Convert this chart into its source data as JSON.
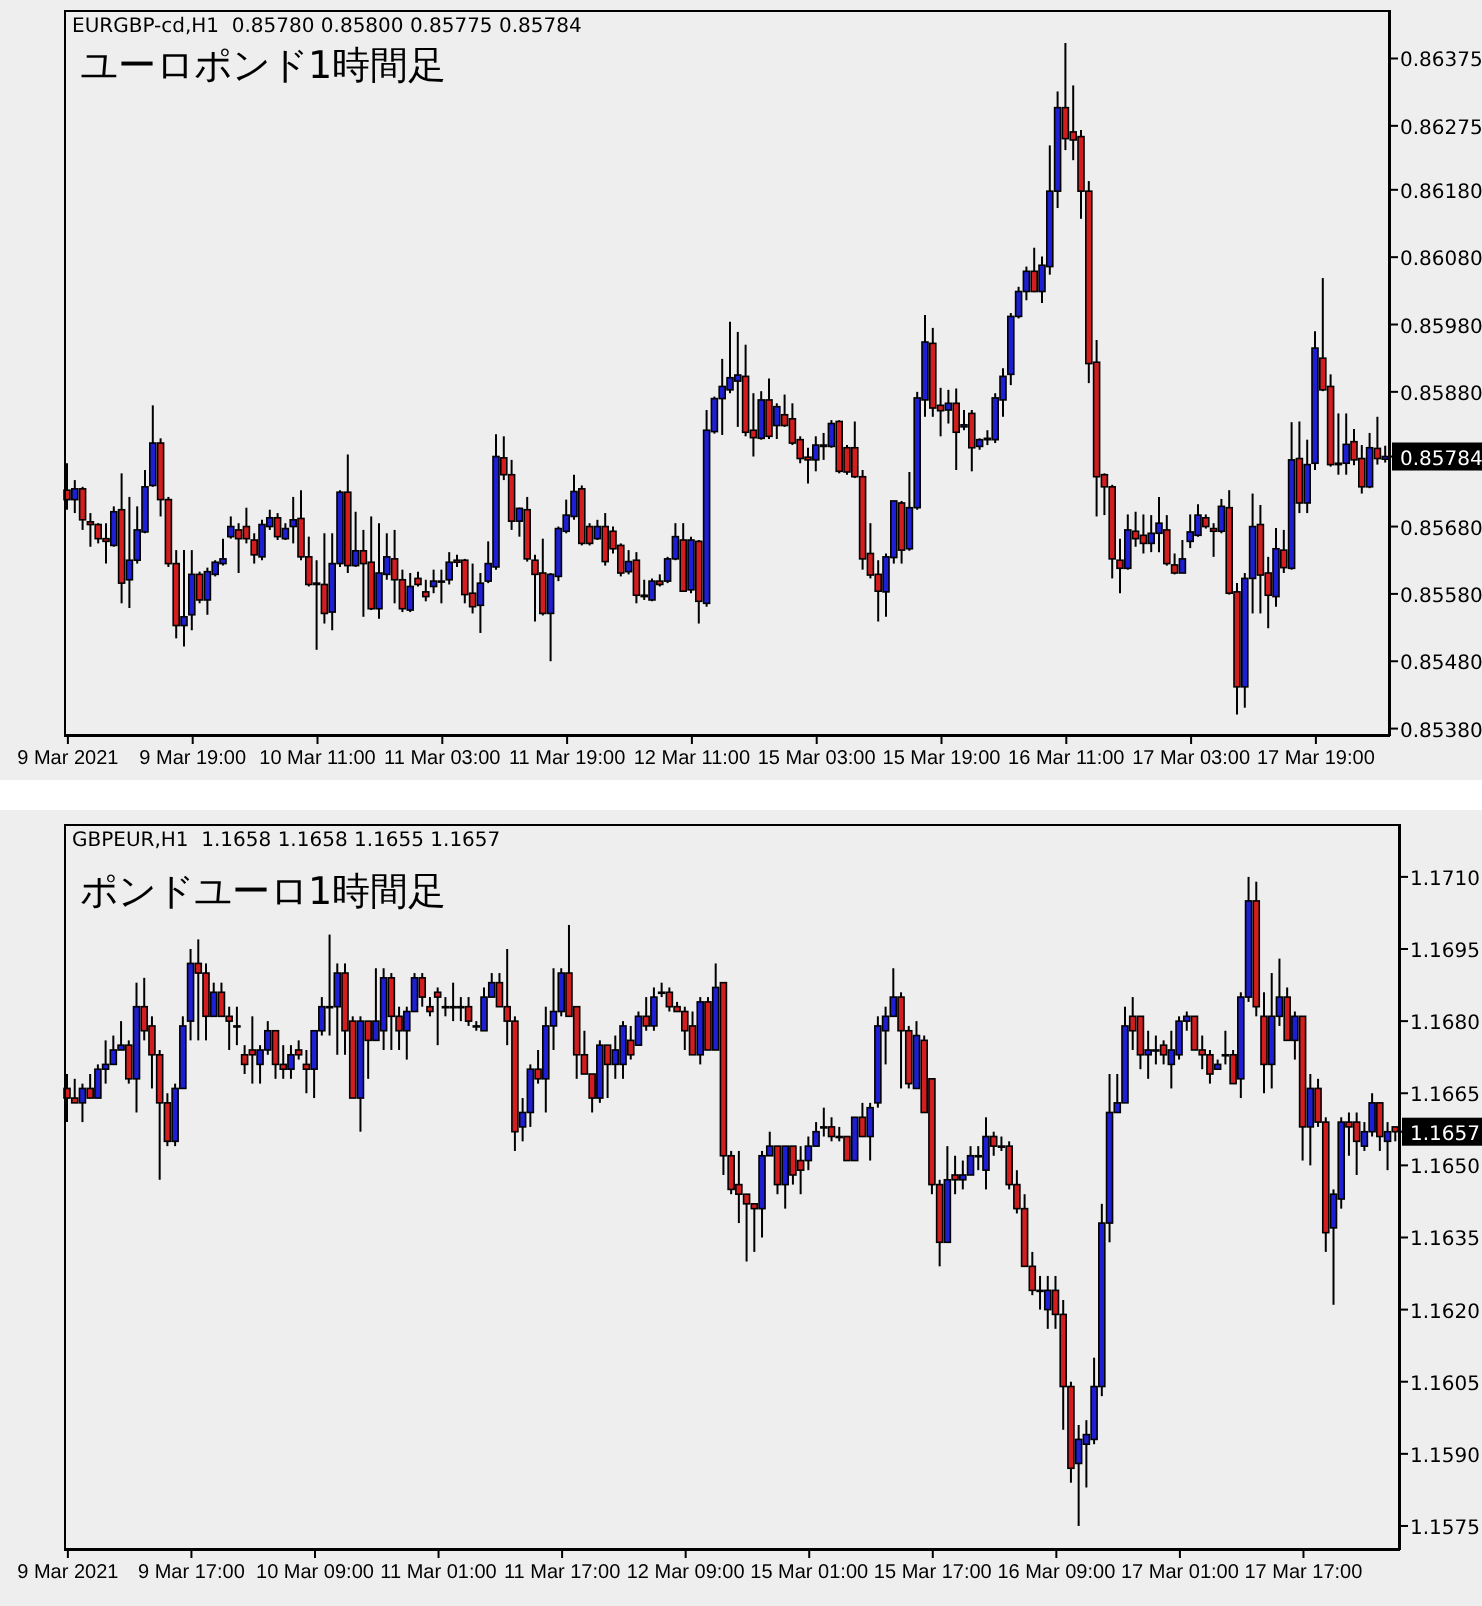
{
  "chart_data": [
    {
      "type": "candlestick",
      "title": "ユーロポンド1時間足",
      "annotations": [
        "EURGBP-cd,H1  0.85780 0.85800 0.85775 0.85784"
      ],
      "categories": [
        "9 Mar 2021",
        null,
        null,
        null,
        null,
        null,
        null,
        null,
        null,
        null,
        null,
        null,
        null,
        null,
        null,
        null,
        "9 Mar 19:00",
        null,
        null,
        null,
        null,
        null,
        null,
        null,
        null,
        null,
        null,
        null,
        null,
        null,
        null,
        null,
        "10 Mar 11:00",
        null,
        null,
        null,
        null,
        null,
        null,
        null,
        null,
        null,
        null,
        null,
        null,
        null,
        null,
        null,
        "11 Mar 03:00",
        null,
        null,
        null,
        null,
        null,
        null,
        null,
        null,
        null,
        null,
        null,
        null,
        null,
        null,
        null,
        "11 Mar 19:00",
        null,
        null,
        null,
        null,
        null,
        null,
        null,
        null,
        null,
        null,
        null,
        null,
        null,
        null,
        null,
        "12 Mar 11:00",
        null,
        null,
        null,
        null,
        null,
        null,
        null,
        null,
        null,
        null,
        null,
        null,
        null,
        null,
        null,
        "15 Mar 03:00",
        null,
        null,
        null,
        null,
        null,
        null,
        null,
        null,
        null,
        null,
        null,
        null,
        null,
        null,
        null,
        "15 Mar 19:00",
        null,
        null,
        null,
        null,
        null,
        null,
        null,
        null,
        null,
        null,
        null,
        null,
        null,
        null,
        null,
        "16 Mar 11:00",
        null,
        null,
        null,
        null,
        null,
        null,
        null,
        null,
        null,
        null,
        null,
        null,
        null,
        null,
        null,
        "17 Mar 03:00",
        null,
        null,
        null,
        null,
        null,
        null,
        null,
        null,
        null,
        null,
        null,
        null,
        null,
        null,
        null,
        "17 Mar 19:00",
        null,
        null,
        null,
        null,
        null,
        null,
        null,
        null,
        null
      ],
      "ohlc": [
        [
          0.85734,
          0.85774,
          0.85705,
          0.8572
        ],
        [
          0.8572,
          0.85749,
          0.857,
          0.85736
        ],
        [
          0.85736,
          0.85739,
          0.85675,
          0.8569
        ],
        [
          0.85687,
          0.857,
          0.8565,
          0.85683
        ],
        [
          0.85683,
          0.85685,
          0.85655,
          0.85662
        ],
        [
          0.85662,
          0.85685,
          0.85625,
          0.85658
        ],
        [
          0.85652,
          0.8571,
          0.8565,
          0.85702
        ],
        [
          0.85705,
          0.85759,
          0.85566,
          0.85596
        ],
        [
          0.85601,
          0.85724,
          0.85559,
          0.8563
        ],
        [
          0.8563,
          0.8571,
          0.85625,
          0.85675
        ],
        [
          0.85672,
          0.85764,
          0.8567,
          0.85739
        ],
        [
          0.85741,
          0.8586,
          0.85739,
          0.85804
        ],
        [
          0.85804,
          0.85811,
          0.85695,
          0.8572
        ],
        [
          0.8572,
          0.85724,
          0.8562,
          0.85625
        ],
        [
          0.85625,
          0.85645,
          0.85514,
          0.85533
        ],
        [
          0.85533,
          0.85645,
          0.85502,
          0.85546
        ],
        [
          0.85549,
          0.85645,
          0.85526,
          0.85609
        ],
        [
          0.85609,
          0.85613,
          0.85566,
          0.85571
        ],
        [
          0.85571,
          0.85619,
          0.85549,
          0.85613
        ],
        [
          0.85609,
          0.8563,
          0.85606,
          0.85627
        ],
        [
          0.85625,
          0.85662,
          0.85622,
          0.85632
        ],
        [
          0.85665,
          0.85695,
          0.85662,
          0.8568
        ],
        [
          0.85675,
          0.85685,
          0.85611,
          0.85662
        ],
        [
          0.8568,
          0.85708,
          0.85655,
          0.85662
        ],
        [
          0.8566,
          0.8567,
          0.85625,
          0.85638
        ],
        [
          0.85635,
          0.8569,
          0.8563,
          0.85683
        ],
        [
          0.8568,
          0.85705,
          0.85675,
          0.85693
        ],
        [
          0.85693,
          0.857,
          0.8566,
          0.85665
        ],
        [
          0.85662,
          0.85685,
          0.8566,
          0.85677
        ],
        [
          0.8568,
          0.85724,
          0.85655,
          0.8569
        ],
        [
          0.85692,
          0.85734,
          0.8563,
          0.85635
        ],
        [
          0.85635,
          0.85665,
          0.85591,
          0.85594
        ],
        [
          0.85596,
          0.8563,
          0.85497,
          0.85594
        ],
        [
          0.85594,
          0.8567,
          0.85536,
          0.85551
        ],
        [
          0.85553,
          0.8567,
          0.85526,
          0.85625
        ],
        [
          0.85625,
          0.85734,
          0.8562,
          0.85731
        ],
        [
          0.85731,
          0.85787,
          0.85611,
          0.85622
        ],
        [
          0.85622,
          0.85702,
          0.8562,
          0.85644
        ],
        [
          0.85644,
          0.85675,
          0.85546,
          0.85625
        ],
        [
          0.85627,
          0.85695,
          0.85556,
          0.85558
        ],
        [
          0.85558,
          0.85685,
          0.85543,
          0.85611
        ],
        [
          0.85609,
          0.8567,
          0.85601,
          0.85635
        ],
        [
          0.85632,
          0.85675,
          0.85566,
          0.85601
        ],
        [
          0.85601,
          0.85616,
          0.85553,
          0.85558
        ],
        [
          0.85556,
          0.85611,
          0.85553,
          0.85591
        ],
        [
          0.85603,
          0.85613,
          0.85591,
          0.85594
        ],
        [
          0.85583,
          0.85601,
          0.85569,
          0.85576
        ],
        [
          0.85591,
          0.85616,
          0.85581,
          0.85599
        ],
        [
          0.85599,
          0.85616,
          0.85566,
          0.85599
        ],
        [
          0.85601,
          0.85642,
          0.85594,
          0.85627
        ],
        [
          0.8563,
          0.85638,
          0.8562,
          0.85627
        ],
        [
          0.8563,
          0.85632,
          0.85566,
          0.85579
        ],
        [
          0.85581,
          0.85625,
          0.85551,
          0.85561
        ],
        [
          0.85563,
          0.85611,
          0.85522,
          0.85596
        ],
        [
          0.85599,
          0.85658,
          0.85596,
          0.85625
        ],
        [
          0.8562,
          0.85817,
          0.85616,
          0.85784
        ],
        [
          0.85782,
          0.85814,
          0.85749,
          0.85757
        ],
        [
          0.85757,
          0.85779,
          0.85675,
          0.85688
        ],
        [
          0.85688,
          0.85708,
          0.85665,
          0.85707
        ],
        [
          0.85705,
          0.85724,
          0.85628,
          0.85632
        ],
        [
          0.8563,
          0.85638,
          0.85539,
          0.85609
        ],
        [
          0.85611,
          0.85662,
          0.85548,
          0.85551
        ],
        [
          0.85551,
          0.85611,
          0.8548,
          0.85609
        ],
        [
          0.85606,
          0.8568,
          0.85599,
          0.85677
        ],
        [
          0.85673,
          0.8572,
          0.8567,
          0.85697
        ],
        [
          0.85695,
          0.85757,
          0.8569,
          0.85732
        ],
        [
          0.85736,
          0.85741,
          0.85652,
          0.85655
        ],
        [
          0.8568,
          0.85685,
          0.85652,
          0.85655
        ],
        [
          0.85662,
          0.8569,
          0.8566,
          0.8568
        ],
        [
          0.8568,
          0.857,
          0.85622,
          0.85628
        ],
        [
          0.85673,
          0.8568,
          0.8564,
          0.85647
        ],
        [
          0.85652,
          0.85655,
          0.85606,
          0.85611
        ],
        [
          0.85613,
          0.85645,
          0.85609,
          0.85628
        ],
        [
          0.8563,
          0.85642,
          0.85566,
          0.85578
        ],
        [
          0.85576,
          0.85601,
          0.85571,
          0.85578
        ],
        [
          0.85571,
          0.85603,
          0.85569,
          0.85599
        ],
        [
          0.85599,
          0.85609,
          0.85591,
          0.85594
        ],
        [
          0.85599,
          0.85635,
          0.85596,
          0.85632
        ],
        [
          0.85632,
          0.85685,
          0.8563,
          0.85665
        ],
        [
          0.8566,
          0.85685,
          0.85583,
          0.85584
        ],
        [
          0.85586,
          0.85665,
          0.85581,
          0.8566
        ],
        [
          0.85658,
          0.8566,
          0.85536,
          0.85569
        ],
        [
          0.85566,
          0.85853,
          0.85561,
          0.85823
        ],
        [
          0.85821,
          0.85873,
          0.85818,
          0.8587
        ],
        [
          0.8587,
          0.85929,
          0.85816,
          0.85888
        ],
        [
          0.85883,
          0.85984,
          0.85878,
          0.85901
        ],
        [
          0.85896,
          0.85969,
          0.85828,
          0.85905
        ],
        [
          0.85903,
          0.8595,
          0.85814,
          0.8582
        ],
        [
          0.85823,
          0.85878,
          0.85784,
          0.85812
        ],
        [
          0.85811,
          0.85881,
          0.85809,
          0.85868
        ],
        [
          0.85868,
          0.859,
          0.8581,
          0.85814
        ],
        [
          0.8583,
          0.85863,
          0.8581,
          0.85858
        ],
        [
          0.85846,
          0.85876,
          0.85828,
          0.8583
        ],
        [
          0.8584,
          0.85863,
          0.85801,
          0.85804
        ],
        [
          0.85809,
          0.85814,
          0.85774,
          0.85781
        ],
        [
          0.85783,
          0.85797,
          0.85744,
          0.85779
        ],
        [
          0.85779,
          0.85814,
          0.85762,
          0.85801
        ],
        [
          0.85799,
          0.85819,
          0.85779,
          0.85801
        ],
        [
          0.85799,
          0.85838,
          0.85797,
          0.85833
        ],
        [
          0.85836,
          0.85838,
          0.85759,
          0.85762
        ],
        [
          0.85797,
          0.85801,
          0.85757,
          0.85761
        ],
        [
          0.85797,
          0.85836,
          0.85752,
          0.85754
        ],
        [
          0.85754,
          0.85764,
          0.85616,
          0.85632
        ],
        [
          0.8564,
          0.85685,
          0.85603,
          0.85608
        ],
        [
          0.85609,
          0.8563,
          0.85539,
          0.85584
        ],
        [
          0.85583,
          0.8564,
          0.85546,
          0.85635
        ],
        [
          0.85634,
          0.85718,
          0.85625,
          0.85718
        ],
        [
          0.85715,
          0.85718,
          0.85625,
          0.85645
        ],
        [
          0.85647,
          0.85761,
          0.85644,
          0.85708
        ],
        [
          0.85708,
          0.8588,
          0.85705,
          0.85871
        ],
        [
          0.85868,
          0.85994,
          0.85843,
          0.85954
        ],
        [
          0.85952,
          0.85975,
          0.85843,
          0.85856
        ],
        [
          0.8586,
          0.85886,
          0.85814,
          0.85852
        ],
        [
          0.85853,
          0.85883,
          0.85833,
          0.85863
        ],
        [
          0.85863,
          0.85885,
          0.85764,
          0.8582
        ],
        [
          0.85828,
          0.85853,
          0.85823,
          0.85831
        ],
        [
          0.85848,
          0.85853,
          0.85762,
          0.85797
        ],
        [
          0.85799,
          0.85811,
          0.85794,
          0.85809
        ],
        [
          0.85809,
          0.85823,
          0.85801,
          0.85811
        ],
        [
          0.85809,
          0.85878,
          0.85804,
          0.85871
        ],
        [
          0.85868,
          0.85915,
          0.85843,
          0.85903
        ],
        [
          0.85906,
          0.85997,
          0.8589,
          0.85992
        ],
        [
          0.85992,
          0.86036,
          0.85989,
          0.86029
        ],
        [
          0.86029,
          0.86066,
          0.86016,
          0.86059
        ],
        [
          0.86059,
          0.86094,
          0.86028,
          0.86029
        ],
        [
          0.86029,
          0.86081,
          0.86012,
          0.86068
        ],
        [
          0.86066,
          0.86246,
          0.86054,
          0.86178
        ],
        [
          0.86178,
          0.86326,
          0.86153,
          0.86302
        ],
        [
          0.86302,
          0.86398,
          0.86239,
          0.86256
        ],
        [
          0.86266,
          0.86335,
          0.86224,
          0.86254
        ],
        [
          0.86259,
          0.86269,
          0.86137,
          0.86178
        ],
        [
          0.86178,
          0.86193,
          0.85893,
          0.85922
        ],
        [
          0.85924,
          0.85957,
          0.85695,
          0.85754
        ],
        [
          0.85757,
          0.85759,
          0.85697,
          0.85739
        ],
        [
          0.85739,
          0.85742,
          0.85603,
          0.85632
        ],
        [
          0.8563,
          0.85662,
          0.85581,
          0.85618
        ],
        [
          0.85618,
          0.85698,
          0.85616,
          0.85675
        ],
        [
          0.85673,
          0.85702,
          0.8565,
          0.85662
        ],
        [
          0.85667,
          0.85698,
          0.8564,
          0.85655
        ],
        [
          0.85655,
          0.85697,
          0.85642,
          0.8567
        ],
        [
          0.8567,
          0.85724,
          0.85642,
          0.85685
        ],
        [
          0.85675,
          0.85697,
          0.85622,
          0.85625
        ],
        [
          0.85623,
          0.8564,
          0.85609,
          0.85611
        ],
        [
          0.85611,
          0.8566,
          0.85611,
          0.85632
        ],
        [
          0.85658,
          0.85698,
          0.85648,
          0.85672
        ],
        [
          0.85667,
          0.85713,
          0.85665,
          0.85697
        ],
        [
          0.85693,
          0.85698,
          0.85677,
          0.8568
        ],
        [
          0.85677,
          0.85685,
          0.85635,
          0.85673
        ],
        [
          0.85673,
          0.85721,
          0.8567,
          0.8571
        ],
        [
          0.85708,
          0.85734,
          0.85579,
          0.85581
        ],
        [
          0.85583,
          0.85596,
          0.85401,
          0.85442
        ],
        [
          0.85442,
          0.85611,
          0.85411,
          0.85603
        ],
        [
          0.85603,
          0.85729,
          0.85551,
          0.8568
        ],
        [
          0.85683,
          0.85712,
          0.85551,
          0.85608
        ],
        [
          0.85611,
          0.85635,
          0.85529,
          0.85578
        ],
        [
          0.85576,
          0.85678,
          0.85561,
          0.85647
        ],
        [
          0.85645,
          0.85675,
          0.85611,
          0.85619
        ],
        [
          0.85618,
          0.85835,
          0.85616,
          0.85779
        ],
        [
          0.85781,
          0.85836,
          0.857,
          0.85715
        ],
        [
          0.85715,
          0.85809,
          0.857,
          0.85772
        ],
        [
          0.85774,
          0.8597,
          0.85764,
          0.85945
        ],
        [
          0.8593,
          0.86049,
          0.85881,
          0.85883
        ],
        [
          0.85888,
          0.85906,
          0.85769,
          0.85772
        ],
        [
          0.85774,
          0.85848,
          0.85757,
          0.85772
        ],
        [
          0.85774,
          0.85848,
          0.85757,
          0.85802
        ],
        [
          0.85806,
          0.85825,
          0.85771,
          0.85779
        ],
        [
          0.85781,
          0.85801,
          0.85729,
          0.85739
        ],
        [
          0.85739,
          0.85819,
          0.85737,
          0.85797
        ],
        [
          0.85796,
          0.85843,
          0.85772,
          0.85781
        ],
        [
          0.8578,
          0.858,
          0.85775,
          0.85784
        ]
      ],
      "ylim": [
        0.85369,
        0.86447
      ],
      "yticks": [
        {
          "value": 0.8538,
          "label": "0.85380"
        },
        {
          "value": 0.8548,
          "label": "0.85480"
        },
        {
          "value": 0.8558,
          "label": "0.85580"
        },
        {
          "value": 0.8568,
          "label": "0.85680"
        },
        {
          "value": 0.85784,
          "label": "0.85784"
        },
        {
          "value": 0.8588,
          "label": "0.85880"
        },
        {
          "value": 0.8598,
          "label": "0.85980"
        },
        {
          "value": 0.8608,
          "label": "0.86080"
        },
        {
          "value": 0.8618,
          "label": "0.86180"
        },
        {
          "value": 0.86275,
          "label": "0.86275"
        },
        {
          "value": 0.86375,
          "label": "0.86375"
        }
      ]
    },
    {
      "type": "candlestick",
      "title": "ポンドユーロ1時間足",
      "annotations": [
        "GBPEUR,H1  1.1658 1.1658 1.1655 1.1657"
      ],
      "categories": [
        "9 Mar 2021",
        null,
        null,
        null,
        null,
        null,
        null,
        null,
        null,
        null,
        null,
        null,
        null,
        null,
        null,
        null,
        "9 Mar 17:00",
        null,
        null,
        null,
        null,
        null,
        null,
        null,
        null,
        null,
        null,
        null,
        null,
        null,
        null,
        null,
        "10 Mar 09:00",
        null,
        null,
        null,
        null,
        null,
        null,
        null,
        null,
        null,
        null,
        null,
        null,
        null,
        null,
        null,
        "11 Mar 01:00",
        null,
        null,
        null,
        null,
        null,
        null,
        null,
        null,
        null,
        null,
        null,
        null,
        null,
        null,
        null,
        "11 Mar 17:00",
        null,
        null,
        null,
        null,
        null,
        null,
        null,
        null,
        null,
        null,
        null,
        null,
        null,
        null,
        null,
        "12 Mar 09:00",
        null,
        null,
        null,
        null,
        null,
        null,
        null,
        null,
        null,
        null,
        null,
        null,
        null,
        null,
        null,
        "15 Mar 01:00",
        null,
        null,
        null,
        null,
        null,
        null,
        null,
        null,
        null,
        null,
        null,
        null,
        null,
        null,
        null,
        "15 Mar 17:00",
        null,
        null,
        null,
        null,
        null,
        null,
        null,
        null,
        null,
        null,
        null,
        null,
        null,
        null,
        null,
        "16 Mar 09:00",
        null,
        null,
        null,
        null,
        null,
        null,
        null,
        null,
        null,
        null,
        null,
        null,
        null,
        null,
        null,
        "17 Mar 01:00",
        null,
        null,
        null,
        null,
        null,
        null,
        null,
        null,
        null,
        null,
        null,
        null,
        null,
        null,
        null,
        "17 Mar 17:00",
        null,
        null,
        null,
        null,
        null,
        null,
        null,
        null,
        null,
        null,
        null,
        null
      ],
      "ohlc": [
        [
          1.1666,
          1.1669,
          1.1659,
          1.1664
        ],
        [
          1.1664,
          1.1668,
          1.1663,
          1.1663
        ],
        [
          1.1663,
          1.1667,
          1.1659,
          1.1666
        ],
        [
          1.1666,
          1.1669,
          1.1664,
          1.1664
        ],
        [
          1.1664,
          1.1671,
          1.1664,
          1.167
        ],
        [
          1.167,
          1.1676,
          1.1667,
          1.1671
        ],
        [
          1.1671,
          1.1677,
          1.1671,
          1.1674
        ],
        [
          1.1674,
          1.168,
          1.1674,
          1.1675
        ],
        [
          1.1675,
          1.1676,
          1.1667,
          1.1668
        ],
        [
          1.1668,
          1.1688,
          1.1661,
          1.1683
        ],
        [
          1.1683,
          1.1689,
          1.1676,
          1.1678
        ],
        [
          1.1679,
          1.1681,
          1.1666,
          1.1673
        ],
        [
          1.1673,
          1.1674,
          1.1647,
          1.1663
        ],
        [
          1.1663,
          1.1665,
          1.1654,
          1.1655
        ],
        [
          1.1655,
          1.1667,
          1.1654,
          1.1666
        ],
        [
          1.1666,
          1.1681,
          1.1666,
          1.1679
        ],
        [
          1.168,
          1.1695,
          1.1676,
          1.1692
        ],
        [
          1.1692,
          1.1697,
          1.1676,
          1.169
        ],
        [
          1.169,
          1.1692,
          1.1676,
          1.1681
        ],
        [
          1.1681,
          1.1688,
          1.1681,
          1.1686
        ],
        [
          1.1686,
          1.1688,
          1.1681,
          1.1681
        ],
        [
          1.1681,
          1.1683,
          1.1674,
          1.168
        ],
        [
          1.1679,
          1.1683,
          1.1675,
          1.1679
        ],
        [
          1.1673,
          1.1675,
          1.1669,
          1.1671
        ],
        [
          1.1674,
          1.1681,
          1.1667,
          1.1673
        ],
        [
          1.1671,
          1.1675,
          1.1667,
          1.1674
        ],
        [
          1.1674,
          1.168,
          1.1673,
          1.1678
        ],
        [
          1.1678,
          1.1678,
          1.1668,
          1.1671
        ],
        [
          1.1671,
          1.1675,
          1.1668,
          1.167
        ],
        [
          1.167,
          1.1675,
          1.1668,
          1.1673
        ],
        [
          1.1674,
          1.1676,
          1.1672,
          1.1673
        ],
        [
          1.1671,
          1.1674,
          1.1665,
          1.167
        ],
        [
          1.167,
          1.1678,
          1.1664,
          1.1678
        ],
        [
          1.1678,
          1.1685,
          1.1677,
          1.1683
        ],
        [
          1.1683,
          1.1698,
          1.1677,
          1.1683
        ],
        [
          1.1683,
          1.1692,
          1.1673,
          1.169
        ],
        [
          1.169,
          1.1692,
          1.1673,
          1.1678
        ],
        [
          1.168,
          1.1681,
          1.1664,
          1.1664
        ],
        [
          1.1664,
          1.1681,
          1.1657,
          1.168
        ],
        [
          1.168,
          1.168,
          1.1668,
          1.1676
        ],
        [
          1.1676,
          1.1691,
          1.1676,
          1.168
        ],
        [
          1.1678,
          1.1691,
          1.1674,
          1.1689
        ],
        [
          1.1689,
          1.169,
          1.1674,
          1.1681
        ],
        [
          1.1681,
          1.1683,
          1.1674,
          1.1678
        ],
        [
          1.1678,
          1.1683,
          1.1672,
          1.1682
        ],
        [
          1.1682,
          1.169,
          1.1682,
          1.1689
        ],
        [
          1.1689,
          1.169,
          1.1683,
          1.1685
        ],
        [
          1.1683,
          1.1685,
          1.1681,
          1.1682
        ],
        [
          1.1686,
          1.1687,
          1.1675,
          1.1685
        ],
        [
          1.1683,
          1.1685,
          1.1681,
          1.1683
        ],
        [
          1.1683,
          1.1688,
          1.168,
          1.1683
        ],
        [
          1.1683,
          1.1685,
          1.168,
          1.1683
        ],
        [
          1.1683,
          1.1685,
          1.1679,
          1.168
        ],
        [
          1.1679,
          1.168,
          1.1678,
          1.1679
        ],
        [
          1.1678,
          1.1687,
          1.1678,
          1.1685
        ],
        [
          1.1685,
          1.169,
          1.1685,
          1.1688
        ],
        [
          1.1688,
          1.169,
          1.1683,
          1.1683
        ],
        [
          1.1683,
          1.1695,
          1.1675,
          1.168
        ],
        [
          1.168,
          1.1681,
          1.1653,
          1.1657
        ],
        [
          1.1658,
          1.1664,
          1.1655,
          1.1661
        ],
        [
          1.1661,
          1.1671,
          1.1658,
          1.167
        ],
        [
          1.167,
          1.1674,
          1.1667,
          1.1668
        ],
        [
          1.1668,
          1.1683,
          1.1661,
          1.1679
        ],
        [
          1.1679,
          1.1691,
          1.1674,
          1.1682
        ],
        [
          1.1682,
          1.1691,
          1.1681,
          1.169
        ],
        [
          1.169,
          1.17,
          1.1681,
          1.1681
        ],
        [
          1.1683,
          1.1683,
          1.1668,
          1.1673
        ],
        [
          1.1673,
          1.1678,
          1.1669,
          1.1669
        ],
        [
          1.1669,
          1.1669,
          1.1661,
          1.1664
        ],
        [
          1.1664,
          1.1676,
          1.1663,
          1.1675
        ],
        [
          1.1675,
          1.1675,
          1.1664,
          1.1671
        ],
        [
          1.1671,
          1.1677,
          1.1668,
          1.1674
        ],
        [
          1.1671,
          1.168,
          1.1668,
          1.1679
        ],
        [
          1.1676,
          1.1679,
          1.1672,
          1.1673
        ],
        [
          1.1675,
          1.1682,
          1.1675,
          1.1681
        ],
        [
          1.1681,
          1.1685,
          1.1678,
          1.1679
        ],
        [
          1.1679,
          1.1687,
          1.1678,
          1.1685
        ],
        [
          1.1686,
          1.1688,
          1.1685,
          1.1686
        ],
        [
          1.1686,
          1.1687,
          1.1682,
          1.1683
        ],
        [
          1.1683,
          1.1684,
          1.1682,
          1.1682
        ],
        [
          1.1682,
          1.1683,
          1.1674,
          1.1678
        ],
        [
          1.1679,
          1.1682,
          1.1673,
          1.1673
        ],
        [
          1.1673,
          1.1685,
          1.1671,
          1.1684
        ],
        [
          1.1684,
          1.1685,
          1.1674,
          1.1674
        ],
        [
          1.1674,
          1.1692,
          1.1674,
          1.1687
        ],
        [
          1.1688,
          1.1688,
          1.1648,
          1.1652
        ],
        [
          1.1652,
          1.1653,
          1.1644,
          1.1645
        ],
        [
          1.1646,
          1.1653,
          1.1638,
          1.1644
        ],
        [
          1.1644,
          1.1644,
          1.163,
          1.1642
        ],
        [
          1.1642,
          1.1642,
          1.1632,
          1.1641
        ],
        [
          1.1641,
          1.1653,
          1.1635,
          1.1652
        ],
        [
          1.1652,
          1.1657,
          1.1652,
          1.1654
        ],
        [
          1.1654,
          1.1654,
          1.1644,
          1.1646
        ],
        [
          1.1646,
          1.1654,
          1.1641,
          1.1654
        ],
        [
          1.1654,
          1.1654,
          1.1646,
          1.1648
        ],
        [
          1.1651,
          1.1654,
          1.1644,
          1.1649
        ],
        [
          1.1651,
          1.1656,
          1.1649,
          1.1654
        ],
        [
          1.1654,
          1.1659,
          1.1654,
          1.1657
        ],
        [
          1.1658,
          1.1662,
          1.1656,
          1.1658
        ],
        [
          1.1658,
          1.166,
          1.1655,
          1.1656
        ],
        [
          1.1656,
          1.1658,
          1.1655,
          1.1656
        ],
        [
          1.1656,
          1.1656,
          1.1651,
          1.1651
        ],
        [
          1.1651,
          1.166,
          1.1651,
          1.166
        ],
        [
          1.166,
          1.1663,
          1.1656,
          1.1656
        ],
        [
          1.1656,
          1.1663,
          1.1651,
          1.1662
        ],
        [
          1.1663,
          1.1681,
          1.1662,
          1.1679
        ],
        [
          1.1678,
          1.1683,
          1.1671,
          1.1681
        ],
        [
          1.1681,
          1.1691,
          1.1681,
          1.1685
        ],
        [
          1.1685,
          1.1686,
          1.1666,
          1.1678
        ],
        [
          1.1678,
          1.1679,
          1.1666,
          1.1667
        ],
        [
          1.1666,
          1.168,
          1.1666,
          1.1677
        ],
        [
          1.1676,
          1.1677,
          1.1661,
          1.1661
        ],
        [
          1.1668,
          1.1668,
          1.1644,
          1.1646
        ],
        [
          1.1646,
          1.1647,
          1.1629,
          1.1634
        ],
        [
          1.1634,
          1.1654,
          1.1634,
          1.1647
        ],
        [
          1.1648,
          1.1652,
          1.1644,
          1.1647
        ],
        [
          1.1647,
          1.1651,
          1.1645,
          1.1648
        ],
        [
          1.1648,
          1.1654,
          1.1648,
          1.1652
        ],
        [
          1.1652,
          1.1654,
          1.1649,
          1.1652
        ],
        [
          1.1649,
          1.166,
          1.1645,
          1.1656
        ],
        [
          1.1656,
          1.1657,
          1.1652,
          1.1654
        ],
        [
          1.1654,
          1.1656,
          1.1653,
          1.1654
        ],
        [
          1.1654,
          1.1655,
          1.1645,
          1.1646
        ],
        [
          1.1646,
          1.1649,
          1.164,
          1.1641
        ],
        [
          1.1641,
          1.1644,
          1.1629,
          1.1629
        ],
        [
          1.1629,
          1.1632,
          1.1623,
          1.1624
        ],
        [
          1.1624,
          1.1627,
          1.162,
          1.1624
        ],
        [
          1.162,
          1.1627,
          1.1616,
          1.1624
        ],
        [
          1.1624,
          1.1627,
          1.1616,
          1.1619
        ],
        [
          1.1619,
          1.1622,
          1.1595,
          1.1604
        ],
        [
          1.1604,
          1.1605,
          1.1584,
          1.1587
        ],
        [
          1.1588,
          1.1596,
          1.1575,
          1.1593
        ],
        [
          1.1592,
          1.1597,
          1.1583,
          1.1594
        ],
        [
          1.1593,
          1.161,
          1.1592,
          1.1604
        ],
        [
          1.1604,
          1.1642,
          1.1602,
          1.1638
        ],
        [
          1.1638,
          1.1669,
          1.1634,
          1.1661
        ],
        [
          1.1661,
          1.1669,
          1.1661,
          1.1663
        ],
        [
          1.1663,
          1.1683,
          1.1663,
          1.1679
        ],
        [
          1.1681,
          1.1685,
          1.1674,
          1.1678
        ],
        [
          1.1681,
          1.1681,
          1.167,
          1.1673
        ],
        [
          1.1673,
          1.1678,
          1.1668,
          1.1674
        ],
        [
          1.1674,
          1.1677,
          1.1671,
          1.1674
        ],
        [
          1.1675,
          1.1676,
          1.1671,
          1.1673
        ],
        [
          1.1671,
          1.1678,
          1.1666,
          1.1674
        ],
        [
          1.1673,
          1.1681,
          1.1672,
          1.168
        ],
        [
          1.168,
          1.1682,
          1.1678,
          1.1681
        ],
        [
          1.1681,
          1.1681,
          1.1674,
          1.1674
        ],
        [
          1.1674,
          1.1677,
          1.167,
          1.1673
        ],
        [
          1.1673,
          1.1674,
          1.1667,
          1.1669
        ],
        [
          1.167,
          1.1672,
          1.167,
          1.1671
        ],
        [
          1.1673,
          1.1678,
          1.1671,
          1.1673
        ],
        [
          1.1673,
          1.1674,
          1.1667,
          1.1667
        ],
        [
          1.1668,
          1.1686,
          1.1664,
          1.1685
        ],
        [
          1.1685,
          1.171,
          1.1684,
          1.1705
        ],
        [
          1.1705,
          1.1709,
          1.1681,
          1.1683
        ],
        [
          1.1681,
          1.1686,
          1.1665,
          1.1671
        ],
        [
          1.1671,
          1.169,
          1.1666,
          1.1681
        ],
        [
          1.1681,
          1.1693,
          1.1679,
          1.1685
        ],
        [
          1.1685,
          1.1687,
          1.1676,
          1.1676
        ],
        [
          1.1676,
          1.1682,
          1.1672,
          1.1681
        ],
        [
          1.1681,
          1.1681,
          1.1651,
          1.1658
        ],
        [
          1.1658,
          1.1669,
          1.165,
          1.1666
        ],
        [
          1.1666,
          1.1668,
          1.1658,
          1.1659
        ],
        [
          1.1659,
          1.166,
          1.1632,
          1.1636
        ],
        [
          1.1637,
          1.1645,
          1.1621,
          1.1644
        ],
        [
          1.1643,
          1.166,
          1.1641,
          1.1659
        ],
        [
          1.1659,
          1.1661,
          1.1652,
          1.1658
        ],
        [
          1.1659,
          1.1661,
          1.1648,
          1.1655
        ],
        [
          1.1654,
          1.1659,
          1.1653,
          1.1657
        ],
        [
          1.1657,
          1.1665,
          1.1656,
          1.1663
        ],
        [
          1.1663,
          1.1663,
          1.1653,
          1.1656
        ],
        [
          1.1655,
          1.1659,
          1.1649,
          1.1657
        ],
        [
          1.1658,
          1.1658,
          1.1655,
          1.1657
        ]
      ],
      "ylim": [
        1.157,
        1.1721
      ],
      "yticks": [
        {
          "value": 1.1575,
          "label": "1.1575"
        },
        {
          "value": 1.159,
          "label": "1.1590"
        },
        {
          "value": 1.1605,
          "label": "1.1605"
        },
        {
          "value": 1.162,
          "label": "1.1620"
        },
        {
          "value": 1.1635,
          "label": "1.1635"
        },
        {
          "value": 1.165,
          "label": "1.1650"
        },
        {
          "value": 1.1657,
          "label": "1.1657"
        },
        {
          "value": 1.1665,
          "label": "1.1665"
        },
        {
          "value": 1.168,
          "label": "1.1680"
        },
        {
          "value": 1.1695,
          "label": "1.1695"
        },
        {
          "value": 1.171,
          "label": "1.1710"
        }
      ]
    }
  ]
}
